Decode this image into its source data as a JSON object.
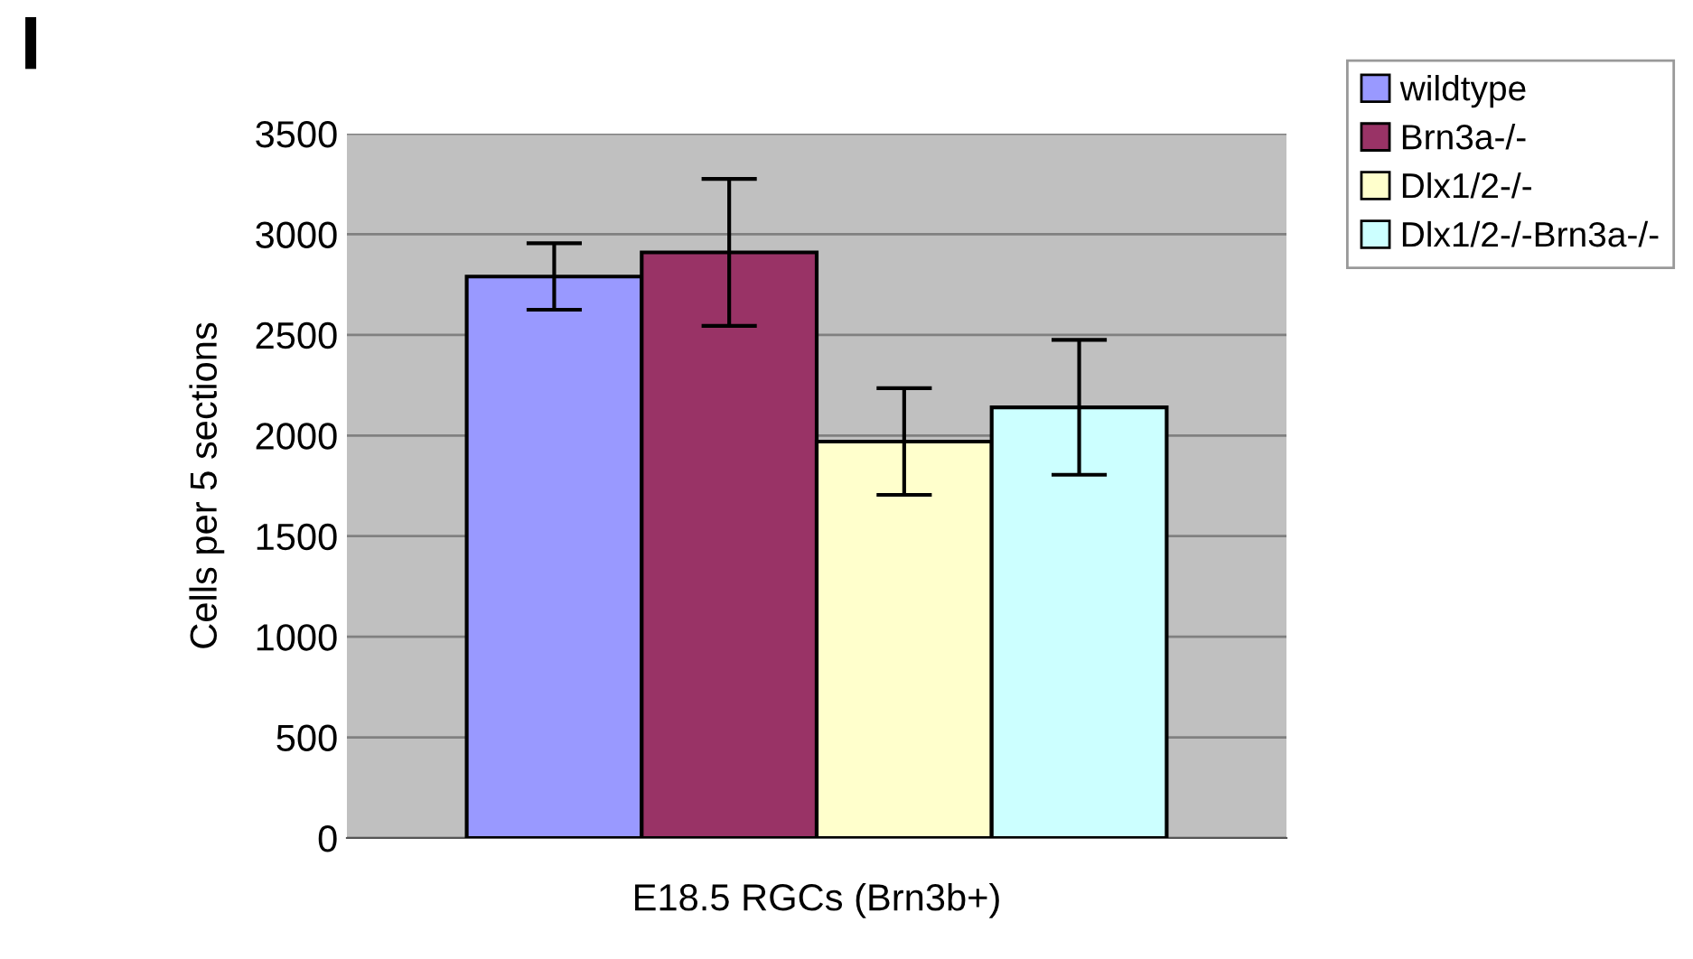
{
  "chart_data": {
    "type": "bar",
    "ylabel": "Cells per 5 sections",
    "categories": [
      "E18.5 RGCs (Brn3b+)"
    ],
    "series": [
      {
        "name": "wildtype",
        "color": "#9999ff",
        "values": [
          2790
        ],
        "errors": [
          165
        ]
      },
      {
        "name": "Brn3a-/-",
        "color": "#993366",
        "values": [
          2910
        ],
        "errors": [
          365
        ]
      },
      {
        "name": "Dlx1/2-/-",
        "color": "#ffffcc",
        "values": [
          1970
        ],
        "errors": [
          265
        ]
      },
      {
        "name": "Dlx1/2-/-Brn3a-/-",
        "color": "#ccffff",
        "values": [
          2140
        ],
        "errors": [
          335
        ]
      }
    ],
    "ylim": [
      0,
      3500
    ],
    "yticks": [
      0,
      500,
      1000,
      1500,
      2000,
      2500,
      3000,
      3500
    ],
    "grid": "y",
    "legend": "top right",
    "annotations": [
      "I"
    ]
  }
}
